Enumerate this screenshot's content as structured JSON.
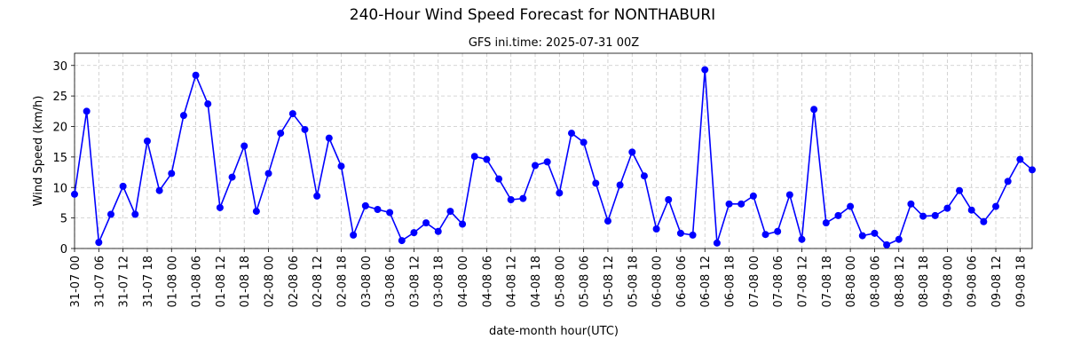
{
  "chart_data": {
    "type": "line",
    "title": "240-Hour Wind Speed Forecast for NONTHABURI",
    "subtitle": "GFS ini.time: 2025-07-31 00Z",
    "xlabel": "date-month hour(UTC)",
    "ylabel": "Wind Speed (km/h)",
    "x": [
      0,
      3,
      6,
      9,
      12,
      15,
      18,
      21,
      24,
      27,
      30,
      33,
      36,
      39,
      42,
      45,
      48,
      51,
      54,
      57,
      60,
      63,
      66,
      69,
      72,
      75,
      78,
      81,
      84,
      87,
      90,
      93,
      96,
      99,
      102,
      105,
      108,
      111,
      114,
      117,
      120,
      123,
      126,
      129,
      132,
      135,
      138,
      141,
      144,
      147,
      150,
      153,
      156,
      159,
      162,
      165,
      168,
      171,
      174,
      177,
      180,
      183,
      186,
      189,
      192,
      195,
      198,
      201,
      204,
      207,
      210,
      213,
      216,
      219,
      222,
      225,
      228,
      231,
      234,
      237
    ],
    "series": [
      {
        "name": "Wind Speed",
        "color": "#0000ff",
        "values": [
          8.9,
          22.5,
          1.0,
          5.6,
          10.2,
          5.6,
          17.6,
          9.5,
          12.3,
          21.8,
          28.4,
          23.7,
          6.7,
          11.7,
          16.8,
          6.1,
          12.3,
          18.9,
          22.1,
          19.5,
          8.6,
          18.1,
          13.5,
          2.2,
          7.0,
          6.4,
          5.9,
          1.3,
          2.6,
          4.2,
          2.8,
          6.1,
          4.0,
          15.1,
          14.6,
          11.4,
          8.0,
          8.2,
          13.6,
          14.2,
          9.1,
          18.9,
          17.4,
          10.7,
          4.5,
          10.4,
          15.8,
          11.9,
          3.2,
          8.0,
          2.5,
          2.2,
          29.3,
          0.9,
          7.3,
          7.3,
          8.6,
          2.3,
          2.8,
          8.8,
          1.5,
          22.8,
          4.2,
          5.4,
          6.9,
          2.1,
          2.5,
          0.6,
          1.5,
          7.3,
          5.3,
          5.4,
          6.6,
          9.5,
          6.3,
          4.4,
          6.9,
          11.0,
          14.6,
          12.9
        ]
      }
    ],
    "xlim": [
      0,
      237
    ],
    "ylim": [
      0,
      32
    ],
    "yticks": [
      0,
      5,
      10,
      15,
      20,
      25,
      30
    ],
    "xticks": [
      {
        "value": 0,
        "label": "31-07 00"
      },
      {
        "value": 6,
        "label": "31-07 06"
      },
      {
        "value": 12,
        "label": "31-07 12"
      },
      {
        "value": 18,
        "label": "31-07 18"
      },
      {
        "value": 24,
        "label": "01-08 00"
      },
      {
        "value": 30,
        "label": "01-08 06"
      },
      {
        "value": 36,
        "label": "01-08 12"
      },
      {
        "value": 42,
        "label": "01-08 18"
      },
      {
        "value": 48,
        "label": "02-08 00"
      },
      {
        "value": 54,
        "label": "02-08 06"
      },
      {
        "value": 60,
        "label": "02-08 12"
      },
      {
        "value": 66,
        "label": "02-08 18"
      },
      {
        "value": 72,
        "label": "03-08 00"
      },
      {
        "value": 78,
        "label": "03-08 06"
      },
      {
        "value": 84,
        "label": "03-08 12"
      },
      {
        "value": 90,
        "label": "03-08 18"
      },
      {
        "value": 96,
        "label": "04-08 00"
      },
      {
        "value": 102,
        "label": "04-08 06"
      },
      {
        "value": 108,
        "label": "04-08 12"
      },
      {
        "value": 114,
        "label": "04-08 18"
      },
      {
        "value": 120,
        "label": "05-08 00"
      },
      {
        "value": 126,
        "label": "05-08 06"
      },
      {
        "value": 132,
        "label": "05-08 12"
      },
      {
        "value": 138,
        "label": "05-08 18"
      },
      {
        "value": 144,
        "label": "06-08 00"
      },
      {
        "value": 150,
        "label": "06-08 06"
      },
      {
        "value": 156,
        "label": "06-08 12"
      },
      {
        "value": 162,
        "label": "06-08 18"
      },
      {
        "value": 168,
        "label": "07-08 00"
      },
      {
        "value": 174,
        "label": "07-08 06"
      },
      {
        "value": 180,
        "label": "07-08 12"
      },
      {
        "value": 186,
        "label": "07-08 18"
      },
      {
        "value": 192,
        "label": "08-08 00"
      },
      {
        "value": 198,
        "label": "08-08 06"
      },
      {
        "value": 204,
        "label": "08-08 12"
      },
      {
        "value": 210,
        "label": "08-08 18"
      },
      {
        "value": 216,
        "label": "09-08 00"
      },
      {
        "value": 222,
        "label": "09-08 06"
      },
      {
        "value": 228,
        "label": "09-08 12"
      },
      {
        "value": 234,
        "label": "09-08 18"
      }
    ],
    "grid": true
  }
}
